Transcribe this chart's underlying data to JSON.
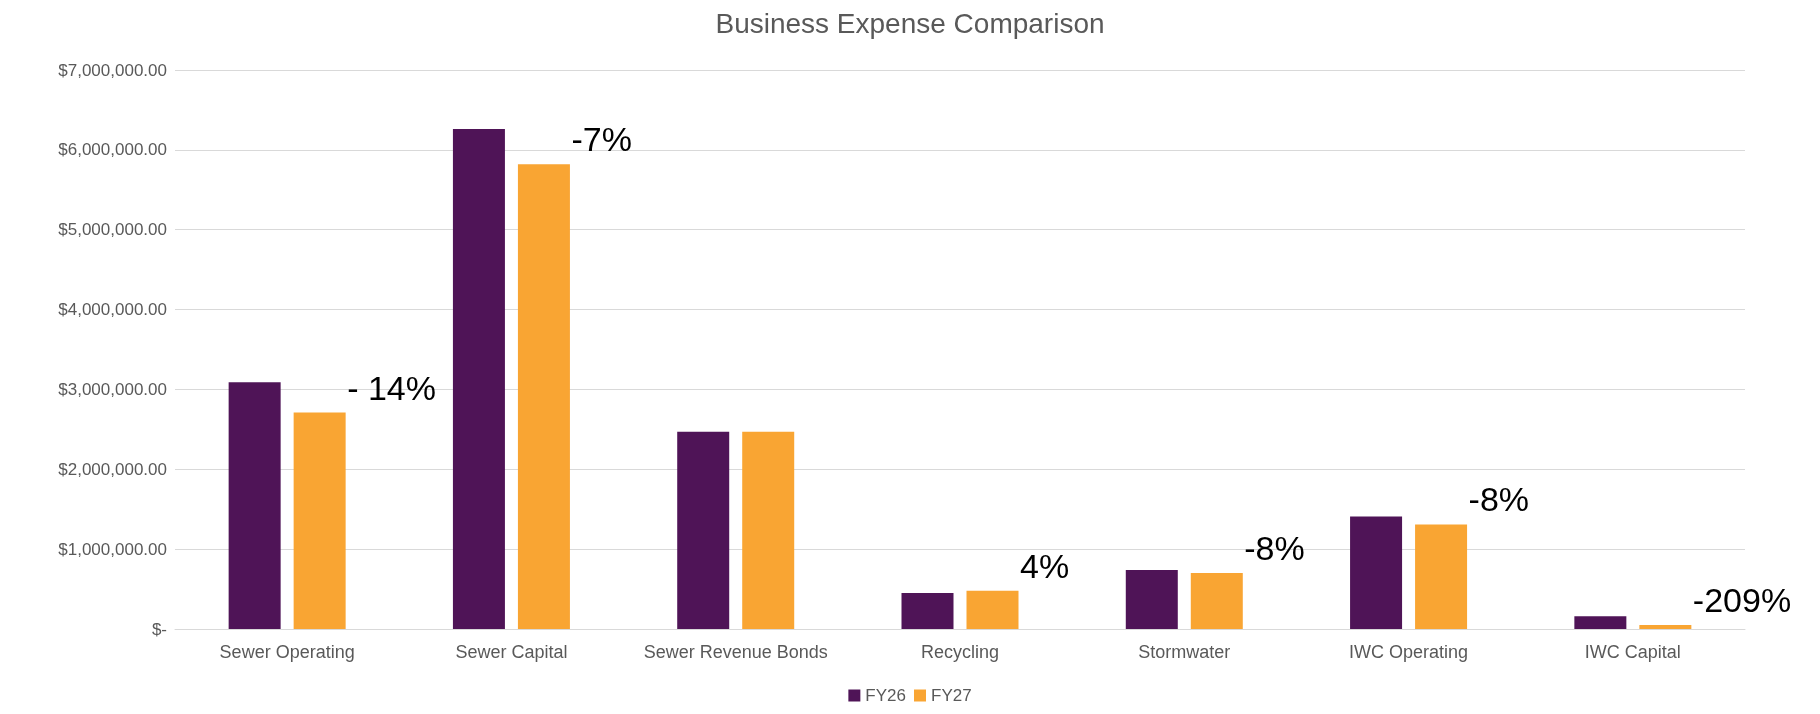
{
  "chart_data": {
    "type": "bar",
    "title": "Business Expense Comparison",
    "categories": [
      "Sewer Operating",
      "Sewer Capital",
      "Sewer Revenue Bonds",
      "Recycling",
      "Stormwater",
      "IWC Operating",
      "IWC Capital"
    ],
    "series": [
      {
        "name": "FY26",
        "color": "#4f1457",
        "values": [
          3090000,
          6260000,
          2470000,
          450000,
          740000,
          1410000,
          160000
        ]
      },
      {
        "name": "FY27",
        "color": "#f9a533",
        "values": [
          2710000,
          5820000,
          2470000,
          480000,
          700000,
          1310000,
          50000
        ]
      }
    ],
    "ylim": [
      0,
      7000000
    ],
    "yticks": [
      {
        "value": 0,
        "label": "$-"
      },
      {
        "value": 1000000,
        "label": "$1,000,000.00"
      },
      {
        "value": 2000000,
        "label": "$2,000,000.00"
      },
      {
        "value": 3000000,
        "label": "$3,000,000.00"
      },
      {
        "value": 4000000,
        "label": "$4,000,000.00"
      },
      {
        "value": 5000000,
        "label": "$5,000,000.00"
      },
      {
        "value": 6000000,
        "label": "$6,000,000.00"
      },
      {
        "value": 7000000,
        "label": "$7,000,000.00"
      }
    ],
    "annotations": [
      "- 14%",
      "-7%",
      "4%",
      "-8%",
      "-8%",
      "-209%"
    ],
    "grid": "y",
    "legend": "bottom"
  }
}
